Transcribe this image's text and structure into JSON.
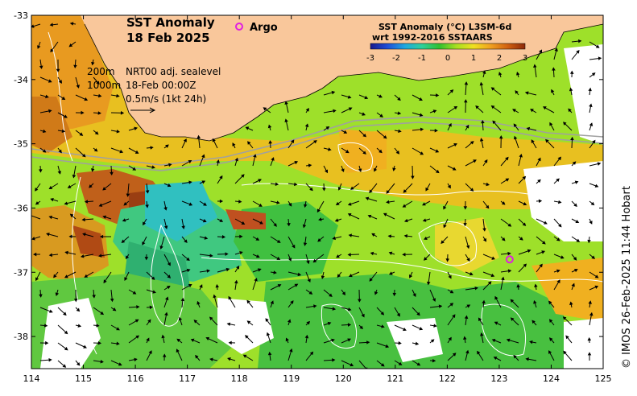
{
  "title": {
    "line1": "SST Anomaly",
    "line2": "18 Feb 2025"
  },
  "argo_legend": {
    "label": "Argo",
    "marker_color": "#e020e0"
  },
  "colorbar": {
    "title_line1": "SST Anomaly (°C) L3SM-6d",
    "title_line2": "wrt 1992-2016 SSTAARS",
    "tick_labels": [
      "-3",
      "-2",
      "-1",
      "0",
      "1",
      "2",
      "3"
    ],
    "range": [
      -3,
      3
    ],
    "colors": [
      "#1a1a8c",
      "#1f4fd8",
      "#1fa8e0",
      "#2fd09a",
      "#30c030",
      "#a8e020",
      "#f0e020",
      "#f0a020",
      "#d06010",
      "#8c2a0a"
    ]
  },
  "annotations": {
    "depth_line1": "200m",
    "depth_line2": "1000m",
    "sealevel_line1": "NRT00 adj. sealevel",
    "sealevel_line2": "18-Feb 00:00Z",
    "vector_scale": "0.5m/s (1kt 24h)"
  },
  "credit": "© IMOS 26-Feb-2025 11:44 Hobart",
  "axes": {
    "x_ticks": [
      "114",
      "115",
      "116",
      "117",
      "118",
      "119",
      "120",
      "121",
      "122",
      "123",
      "124",
      "125"
    ],
    "y_ticks": [
      "-33",
      "-34",
      "-35",
      "-36",
      "-37",
      "-38"
    ],
    "xlim": [
      114,
      125
    ],
    "ylim": [
      -38.5,
      -33
    ]
  },
  "argo_floats": [
    {
      "lon": 123.2,
      "lat": -36.8
    },
    {
      "lon": 118.1,
      "lat": -33.2
    }
  ],
  "colors": {
    "land": "#f9c79b",
    "coastline": "#000000",
    "bathymetry": "#a0a0a0",
    "contour": "#ffffff"
  }
}
